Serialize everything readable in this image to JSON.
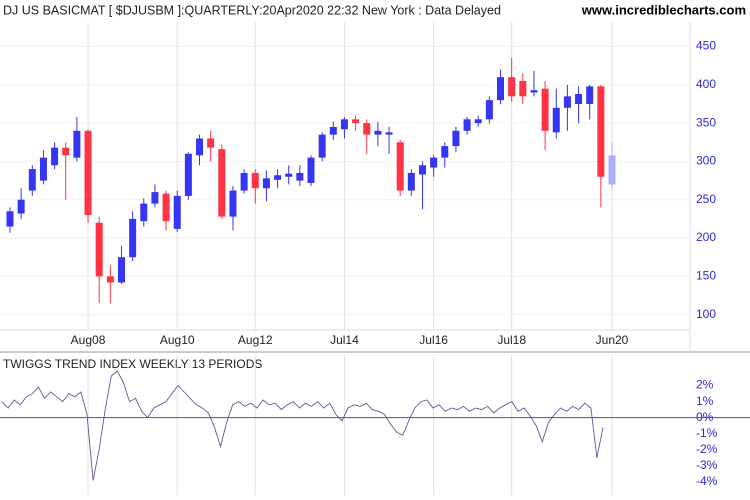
{
  "chart_data": [
    {
      "type": "candlestick",
      "title": "DJ US BASICMAT [ $DJUSBM ]:QUARTERLY:20Apr2020 22:32 New York : Data Delayed",
      "source": "www.incrediblecharts.com",
      "categories": [
        null,
        null,
        null,
        null,
        null,
        null,
        null,
        "Aug08",
        null,
        null,
        null,
        null,
        null,
        null,
        null,
        "Aug10",
        null,
        null,
        null,
        null,
        null,
        null,
        "Aug12",
        null,
        null,
        null,
        null,
        null,
        null,
        null,
        "Jul14",
        null,
        null,
        null,
        null,
        null,
        null,
        null,
        "Jul16",
        null,
        null,
        null,
        null,
        null,
        null,
        "Jul18",
        null,
        null,
        null,
        null,
        null,
        null,
        null,
        null,
        "Jun20"
      ],
      "open": [
        215,
        232,
        262,
        275,
        295,
        318,
        305,
        340,
        220,
        150,
        142,
        175,
        222,
        245,
        258,
        212,
        255,
        308,
        330,
        316,
        228,
        262,
        285,
        265,
        276,
        280,
        275,
        272,
        305,
        335,
        342,
        355,
        350,
        335,
        335,
        325,
        262,
        283,
        292,
        305,
        320,
        340,
        350,
        355,
        380,
        410,
        405,
        390,
        395,
        338,
        370,
        375,
        375,
        398,
        270
      ],
      "high": [
        240,
        265,
        295,
        315,
        325,
        325,
        358,
        342,
        228,
        165,
        190,
        235,
        252,
        270,
        262,
        262,
        312,
        335,
        340,
        322,
        268,
        290,
        290,
        288,
        290,
        295,
        295,
        308,
        338,
        352,
        358,
        360,
        355,
        352,
        345,
        328,
        290,
        300,
        308,
        325,
        345,
        358,
        360,
        385,
        420,
        435,
        415,
        418,
        405,
        395,
        400,
        398,
        400,
        400,
        325
      ],
      "low": [
        207,
        225,
        255,
        270,
        290,
        250,
        300,
        220,
        115,
        115,
        140,
        170,
        215,
        240,
        210,
        208,
        250,
        295,
        300,
        225,
        210,
        258,
        245,
        248,
        265,
        270,
        268,
        268,
        300,
        328,
        330,
        340,
        310,
        320,
        310,
        255,
        255,
        238,
        280,
        292,
        312,
        335,
        345,
        350,
        375,
        378,
        375,
        385,
        315,
        330,
        340,
        350,
        355,
        240,
        265
      ],
      "close": [
        235,
        250,
        290,
        305,
        318,
        308,
        340,
        230,
        150,
        142,
        175,
        225,
        245,
        260,
        222,
        255,
        310,
        330,
        318,
        228,
        262,
        285,
        265,
        278,
        282,
        284,
        285,
        305,
        335,
        345,
        355,
        350,
        335,
        340,
        338,
        262,
        285,
        295,
        305,
        320,
        340,
        355,
        355,
        380,
        410,
        385,
        385,
        393,
        340,
        370,
        385,
        388,
        398,
        280,
        308
      ],
      "up_color": "#3535f2",
      "down_color": "#ff3344",
      "last_color": "#a9aef8",
      "ylim": [
        80,
        482
      ],
      "yticks": [
        100,
        150,
        200,
        250,
        300,
        350,
        400,
        450
      ],
      "grid": true
    },
    {
      "type": "line",
      "title": "TWIGGS TREND INDEX WEEKLY 13 PERIODS",
      "color": "#5a5aa0",
      "values": [
        1.0,
        0.6,
        1.1,
        0.8,
        1.3,
        1.5,
        1.9,
        1.2,
        1.6,
        1.3,
        1.0,
        1.5,
        1.3,
        1.6,
        0.2,
        -3.9,
        -2.0,
        0.5,
        2.6,
        2.9,
        2.2,
        1.0,
        1.2,
        0.4,
        0.0,
        0.6,
        0.8,
        1.0,
        1.5,
        2.0,
        1.6,
        1.2,
        0.8,
        0.6,
        0.3,
        -0.6,
        -1.8,
        -0.3,
        0.8,
        1.0,
        0.7,
        0.9,
        0.6,
        1.1,
        0.8,
        0.9,
        0.5,
        0.8,
        1.0,
        0.6,
        0.9,
        0.7,
        1.0,
        0.6,
        0.9,
        0.2,
        -0.2,
        0.6,
        0.8,
        0.7,
        0.9,
        0.5,
        0.4,
        0.2,
        -0.4,
        -0.9,
        -1.1,
        -0.2,
        0.6,
        1.0,
        1.1,
        0.6,
        0.8,
        0.4,
        0.6,
        0.5,
        0.7,
        0.4,
        0.6,
        0.5,
        0.7,
        0.3,
        0.6,
        0.8,
        1.0,
        0.4,
        0.6,
        0.1,
        -0.5,
        -1.5,
        -0.3,
        0.2,
        0.6,
        0.4,
        0.7,
        0.5,
        0.9,
        0.6,
        -2.5,
        -0.6
      ],
      "ylim": [
        -4.5,
        3.9
      ],
      "yticks": [
        {
          "value": 2,
          "label": "2%"
        },
        {
          "value": 1,
          "label": "1%"
        },
        {
          "value": 0,
          "label": "0%"
        },
        {
          "value": -1,
          "label": "-1%"
        },
        {
          "value": -2,
          "label": "-2%"
        },
        {
          "value": -3,
          "label": "-3%"
        },
        {
          "value": -4,
          "label": "-4%"
        }
      ]
    }
  ]
}
